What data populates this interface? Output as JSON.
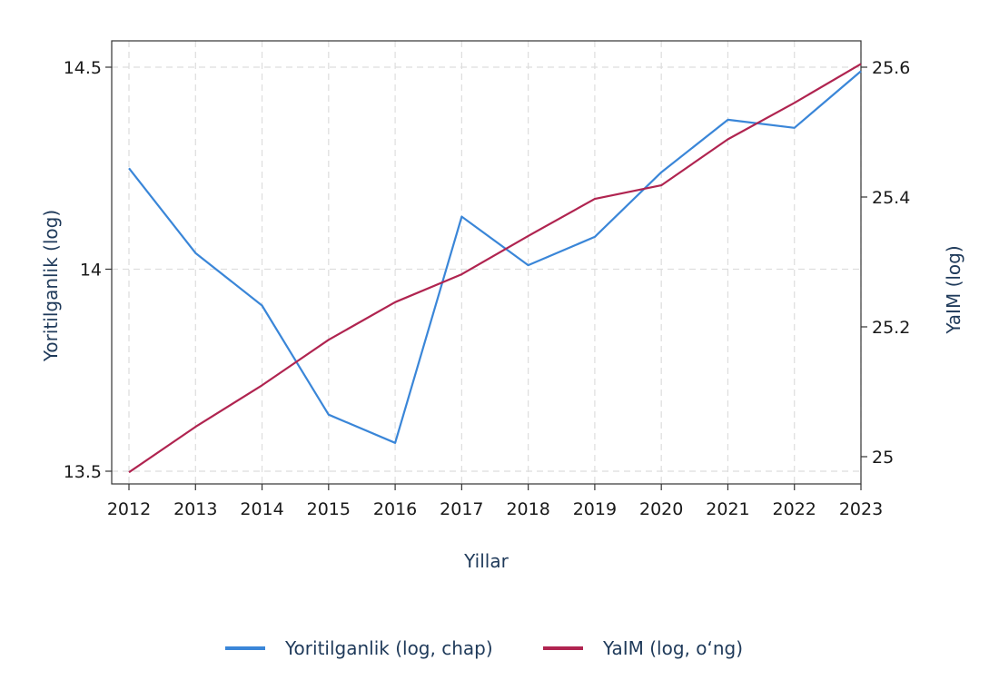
{
  "chart_data": {
    "type": "line",
    "x": [
      2012,
      2013,
      2014,
      2015,
      2016,
      2017,
      2018,
      2019,
      2020,
      2021,
      2022,
      2023
    ],
    "xticks": [
      "2012",
      "2013",
      "2014",
      "2015",
      "2016",
      "2017",
      "2018",
      "2019",
      "2020",
      "2021",
      "2022",
      "2023"
    ],
    "xlabel": "Yillar",
    "left_axis": {
      "label": "Yoritilganlik (log)",
      "ylim": [
        13.5,
        14.5
      ],
      "ticks": [
        13.5,
        14,
        14.5
      ],
      "tick_labels": [
        "13.5",
        "14",
        "14.5"
      ]
    },
    "right_axis": {
      "label": "YaIM (log)",
      "ylim": [
        25.0,
        25.6
      ],
      "ticks": [
        25.0,
        25.2,
        25.4,
        25.6
      ],
      "tick_labels": [
        "25",
        "25.2",
        "25.4",
        "25.6"
      ]
    },
    "series": [
      {
        "name": "Yoritilganlik (log, chap)",
        "axis": "left",
        "color": "#3a86d8",
        "values": [
          14.25,
          14.04,
          13.91,
          13.64,
          13.57,
          14.13,
          14.01,
          14.08,
          14.24,
          14.37,
          14.35,
          14.49
        ]
      },
      {
        "name": "YaIM (log, o‘ng)",
        "axis": "right",
        "color": "#b02450",
        "values": [
          24.976,
          25.046,
          25.11,
          25.18,
          25.238,
          25.281,
          25.34,
          25.397,
          25.418,
          25.489,
          25.545,
          25.605
        ]
      }
    ],
    "grid": true,
    "legend": "bottom"
  }
}
